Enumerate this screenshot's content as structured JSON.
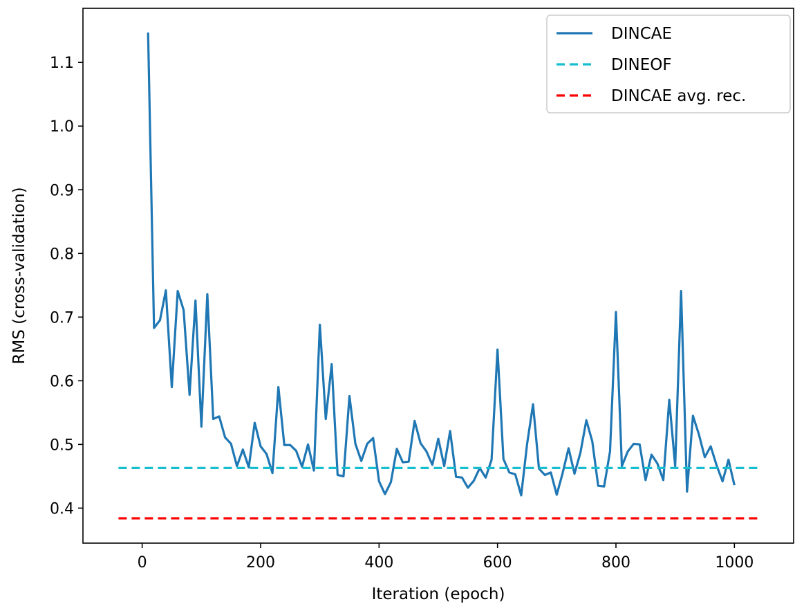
{
  "chart_data": {
    "type": "line",
    "xlabel": "Iteration (epoch)",
    "ylabel": "RMS (cross-validation)",
    "xlim": [
      -100,
      1100
    ],
    "ylim": [
      0.345,
      1.185
    ],
    "xticks": [
      0,
      200,
      400,
      600,
      800,
      1000
    ],
    "yticks": [
      0.4,
      0.5,
      0.6,
      0.7,
      0.8,
      0.9,
      1.0,
      1.1
    ],
    "xtick_labels": [
      "0",
      "200",
      "400",
      "600",
      "800",
      "1000"
    ],
    "ytick_labels": [
      "0.4",
      "0.5",
      "0.6",
      "0.7",
      "0.8",
      "0.9",
      "1.0",
      "1.1"
    ],
    "grid": false,
    "legend_position": "top-right",
    "series": [
      {
        "name": "DINCAE",
        "style": "solid",
        "color": "#1f77b4",
        "x": [
          10,
          20,
          30,
          40,
          50,
          60,
          70,
          80,
          90,
          100,
          110,
          120,
          130,
          140,
          150,
          160,
          170,
          180,
          190,
          200,
          210,
          220,
          230,
          240,
          250,
          260,
          270,
          280,
          290,
          300,
          310,
          320,
          330,
          340,
          350,
          360,
          370,
          380,
          390,
          400,
          410,
          420,
          430,
          440,
          450,
          460,
          470,
          480,
          490,
          500,
          510,
          520,
          530,
          540,
          550,
          560,
          570,
          580,
          590,
          600,
          610,
          620,
          630,
          640,
          650,
          660,
          670,
          680,
          690,
          700,
          710,
          720,
          730,
          740,
          750,
          760,
          770,
          780,
          790,
          800,
          810,
          820,
          830,
          840,
          850,
          860,
          870,
          880,
          890,
          900,
          910,
          920,
          930,
          940,
          950,
          960,
          970,
          980,
          990,
          1000
        ],
        "y": [
          1.147,
          0.683,
          0.695,
          0.742,
          0.59,
          0.741,
          0.711,
          0.578,
          0.726,
          0.528,
          0.736,
          0.54,
          0.544,
          0.511,
          0.501,
          0.466,
          0.492,
          0.464,
          0.534,
          0.497,
          0.485,
          0.455,
          0.59,
          0.499,
          0.499,
          0.49,
          0.465,
          0.5,
          0.459,
          0.688,
          0.54,
          0.626,
          0.452,
          0.45,
          0.576,
          0.501,
          0.474,
          0.501,
          0.51,
          0.442,
          0.422,
          0.441,
          0.493,
          0.472,
          0.473,
          0.537,
          0.502,
          0.489,
          0.468,
          0.509,
          0.466,
          0.521,
          0.449,
          0.448,
          0.432,
          0.443,
          0.463,
          0.448,
          0.476,
          0.649,
          0.477,
          0.456,
          0.453,
          0.42,
          0.501,
          0.563,
          0.462,
          0.452,
          0.456,
          0.421,
          0.455,
          0.494,
          0.454,
          0.487,
          0.538,
          0.505,
          0.435,
          0.434,
          0.489,
          0.708,
          0.466,
          0.489,
          0.501,
          0.5,
          0.444,
          0.484,
          0.47,
          0.444,
          0.57,
          0.466,
          0.741,
          0.426,
          0.545,
          0.516,
          0.48,
          0.497,
          0.467,
          0.442,
          0.476,
          0.436
        ]
      },
      {
        "name": "DINEOF",
        "style": "dashed",
        "color": "#17becf",
        "x": [
          -40,
          1045
        ],
        "y": [
          0.463,
          0.463
        ]
      },
      {
        "name": "DINCAE avg. rec.",
        "style": "dashed",
        "color": "#ff0000",
        "x": [
          -40,
          1045
        ],
        "y": [
          0.384,
          0.384
        ]
      }
    ]
  }
}
